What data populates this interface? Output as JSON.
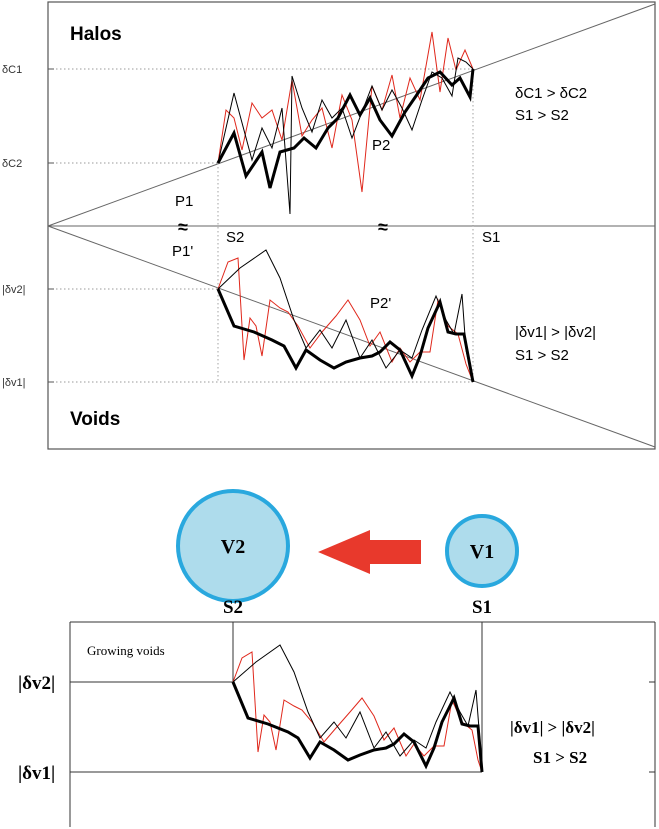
{
  "top_panel": {
    "halos_label": "Halos",
    "voids_label": "Voids",
    "y_tick_dc1": "δC1",
    "y_tick_dc2": "δC2",
    "y_tick_dv2": "|δv2|",
    "y_tick_dv1": "|δv1|",
    "point_p1": "P1",
    "point_p1_prime": "P1'",
    "point_p2": "P2",
    "point_p2_prime": "P2'",
    "scale_s2": "S2",
    "scale_s1": "S1",
    "halo_condition_1": "δC1 > δC2",
    "halo_condition_2": "S1 > S2",
    "void_condition_1": "|δv1| > |δv2|",
    "void_condition_2": "S1 > S2",
    "break_mark": "≈"
  },
  "middle": {
    "void_v2": "V2",
    "void_v1": "V1",
    "scale_s2": "S2",
    "scale_s1": "S1",
    "arrow_color": "#e8392c",
    "circle_fill": "#aedcec",
    "circle_stroke": "#29a8de"
  },
  "bottom_panel": {
    "title": "Growing voids",
    "y_tick_dv2": "|δv2|",
    "y_tick_dv1": "|δv1|",
    "condition_1": "|δv1| > |δv2|",
    "condition_2": "S1 > S2"
  },
  "colors": {
    "red_walk": "#e0281c",
    "black_walk": "#000000",
    "frame": "#555555"
  }
}
